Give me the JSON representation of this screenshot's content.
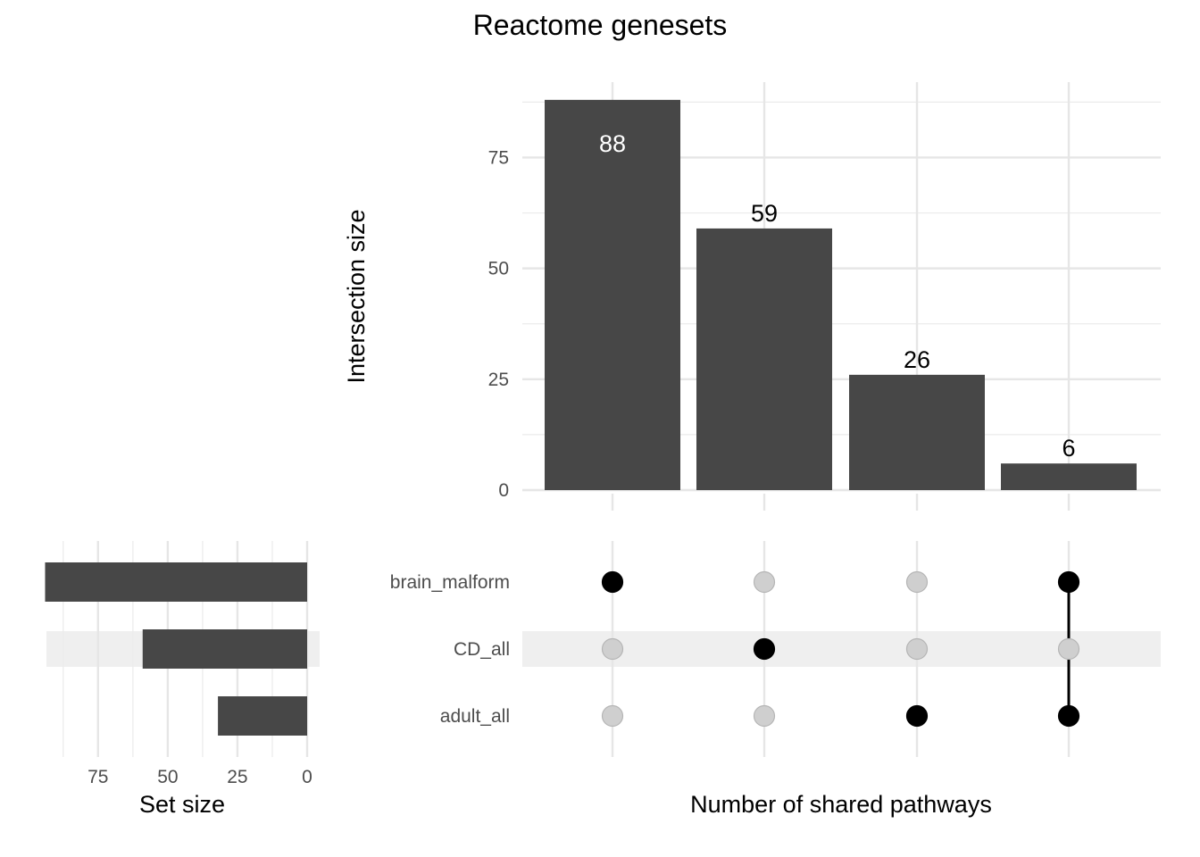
{
  "chart_data": {
    "type": "upset",
    "title": "Reactome genesets",
    "intersections": {
      "ylabel": "Intersection size",
      "xlabel": "Number of shared pathways",
      "ylim": [
        0,
        92
      ],
      "yticks": [
        0,
        25,
        50,
        75
      ],
      "values": [
        88,
        59,
        26,
        6
      ],
      "labels": [
        "88",
        "59",
        "26",
        "6"
      ],
      "membership": [
        [
          "brain_malform"
        ],
        [
          "CD_all"
        ],
        [
          "adult_all"
        ],
        [
          "brain_malform",
          "adult_all"
        ]
      ]
    },
    "sets": {
      "names": [
        "brain_malform",
        "CD_all",
        "adult_all"
      ],
      "sizes": [
        94,
        59,
        32
      ],
      "xlabel": "Set size",
      "xticks": [
        75,
        50,
        25,
        0
      ],
      "xlim": [
        0,
        98
      ]
    },
    "bar_color": "#474747",
    "dot_active_color": "#000000",
    "dot_inactive_color": "#cfcfcf",
    "stripe_color": "#efefef",
    "grid": true
  }
}
